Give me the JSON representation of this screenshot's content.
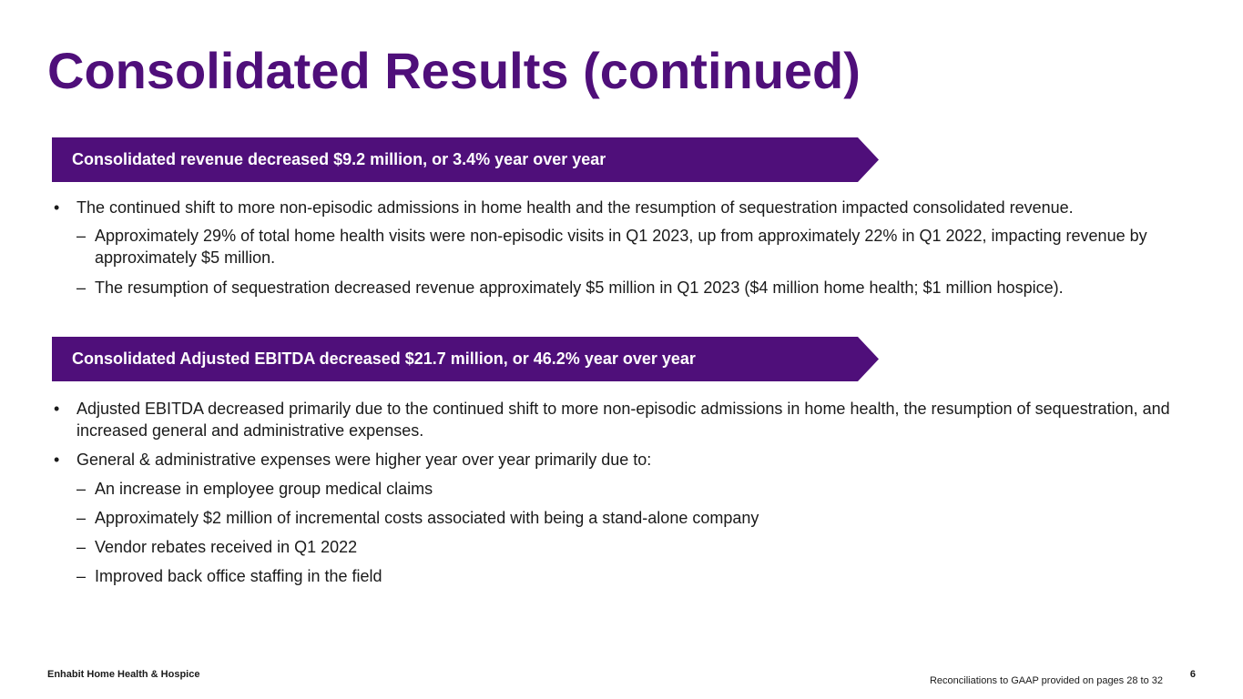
{
  "title": "Consolidated Results (continued)",
  "banners": [
    {
      "text": "Consolidated revenue decreased $9.2 million, or 3.4% year over year"
    },
    {
      "text": "Consolidated Adjusted EBITDA decreased $21.7 million, or 46.2% year over year"
    }
  ],
  "revenue_section": {
    "bullet": "The continued shift to more non-episodic admissions in home health and the resumption of sequestration impacted consolidated revenue.",
    "sub_items": [
      "Approximately 29% of total home health visits were non-episodic visits in Q1 2023, up from approximately 22% in Q1 2022, impacting revenue by approximately $5 million.",
      "The resumption of sequestration decreased revenue approximately $5 million in Q1 2023 ($4 million home health; $1 million hospice)."
    ]
  },
  "ebitda_section": {
    "bullets": [
      "Adjusted EBITDA decreased primarily due to the continued shift to more non-episodic admissions in home health, the resumption of sequestration, and increased general and administrative expenses.",
      "General & administrative expenses were higher year over year primarily due to:"
    ],
    "sub_items": [
      "An increase in employee group medical claims",
      "Approximately $2 million of incremental costs associated with being a stand-alone company",
      "Vendor rebates received in Q1 2022",
      "Improved back office staffing in the field"
    ]
  },
  "markers": {
    "bullet": "•",
    "dash": "–"
  },
  "footer": {
    "company": "Enhabit Home Health & Hospice",
    "note": "Reconciliations to GAAP provided on pages 28 to 32",
    "page_number": "6"
  },
  "colors": {
    "brand_purple": "#4f0f7a",
    "text": "#1a1a1a",
    "background": "#ffffff"
  }
}
